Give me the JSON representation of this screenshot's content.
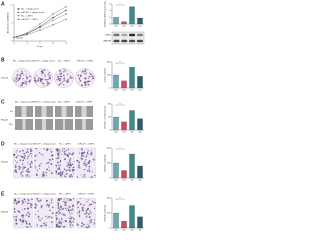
{
  "groups": [
    "NC + empty vector",
    "miR-377 + empty vector",
    "NC + LINP1",
    "miR-377 + LINP1"
  ],
  "panels": [
    {
      "label": "A",
      "cell_line": "HepG2",
      "growth": {
        "type": "line",
        "x_label": "Days",
        "y_label": "Absorbance (OD450)",
        "x": [
          0,
          1,
          2,
          3,
          4
        ],
        "xlim": [
          0,
          4
        ],
        "ylim": [
          0,
          2
        ],
        "xticks": [
          0,
          1,
          2,
          3,
          4
        ],
        "yticks": [
          0,
          1,
          2
        ],
        "series": [
          {
            "name": "NC + empty vector",
            "color": "#222222",
            "values": [
              0.2,
              0.4,
              0.8,
              1.3,
              1.7
            ]
          },
          {
            "name": "miR-377 + empty vector",
            "color": "#d04a63",
            "values": [
              0.2,
              0.35,
              0.6,
              0.9,
              1.2
            ]
          },
          {
            "name": "NC + LINP1",
            "color": "#3a7fb8",
            "values": [
              0.2,
              0.45,
              0.95,
              1.5,
              1.9
            ]
          },
          {
            "name": "miR-377 + LINP1",
            "color": "#3c8c6c",
            "values": [
              0.2,
              0.4,
              0.75,
              1.15,
              1.5
            ]
          }
        ]
      },
      "bars": {
        "y_label": "Relative LINP1 expression",
        "categories": [
          "(1)",
          "(2)",
          "(3)",
          "(4)"
        ],
        "values": [
          1,
          0.35,
          2.6,
          0.9
        ],
        "colors": [
          "#6aa9b4",
          "#d04a63",
          "#3c8c8c",
          "#2d5f6b"
        ],
        "ylim": [
          0,
          3
        ],
        "yticks": [
          0,
          1,
          2,
          3
        ],
        "annotation": "**"
      },
      "blot": {
        "rows": [
          "LINP1",
          "GAPDH"
        ]
      }
    },
    {
      "label": "B",
      "cell_line": "HepG2",
      "kind": "plate",
      "bars": {
        "y_label": "Colony number",
        "categories": [
          "(1)",
          "(2)",
          "(3)",
          "(4)"
        ],
        "values": [
          100,
          55,
          160,
          90
        ],
        "colors": [
          "#6aa9b4",
          "#d04a63",
          "#3c8c8c",
          "#2d5f6b"
        ],
        "ylim": [
          0,
          200
        ],
        "yticks": [
          0,
          100,
          200
        ],
        "annotation": "**"
      }
    },
    {
      "label": "C",
      "cell_line": "HepG2",
      "kind": "wound",
      "rows": [
        "0 h",
        "24 h"
      ],
      "bars": {
        "y_label": "Relative wound closure",
        "categories": [
          "(1)",
          "(2)",
          "(3)",
          "(4)"
        ],
        "values": [
          40,
          25,
          60,
          35
        ],
        "colors": [
          "#6aa9b4",
          "#d04a63",
          "#3c8c8c",
          "#2d5f6b"
        ],
        "ylim": [
          0,
          80
        ],
        "yticks": [
          0,
          40,
          80
        ],
        "annotation": "**"
      }
    },
    {
      "label": "D",
      "cell_line": "HepG2",
      "kind": "transwell",
      "bars": {
        "y_label": "Relative migration",
        "categories": [
          "(1)",
          "(2)",
          "(3)",
          "(4)"
        ],
        "values": [
          100,
          50,
          160,
          80
        ],
        "colors": [
          "#6aa9b4",
          "#d04a63",
          "#3c8c8c",
          "#2d5f6b"
        ],
        "ylim": [
          0,
          200
        ],
        "yticks": [
          0,
          100,
          200
        ],
        "annotation": "**"
      }
    },
    {
      "label": "E",
      "cell_line": "HepG2",
      "kind": "transwell",
      "bars": {
        "y_label": "Relative invasion",
        "categories": [
          "(1)",
          "(2)",
          "(3)",
          "(4)"
        ],
        "values": [
          100,
          45,
          150,
          75
        ],
        "colors": [
          "#6aa9b4",
          "#d04a63",
          "#3c8c8c",
          "#2d5f6b"
        ],
        "ylim": [
          0,
          200
        ],
        "yticks": [
          0,
          100,
          200
        ],
        "annotation": "**"
      }
    }
  ]
}
